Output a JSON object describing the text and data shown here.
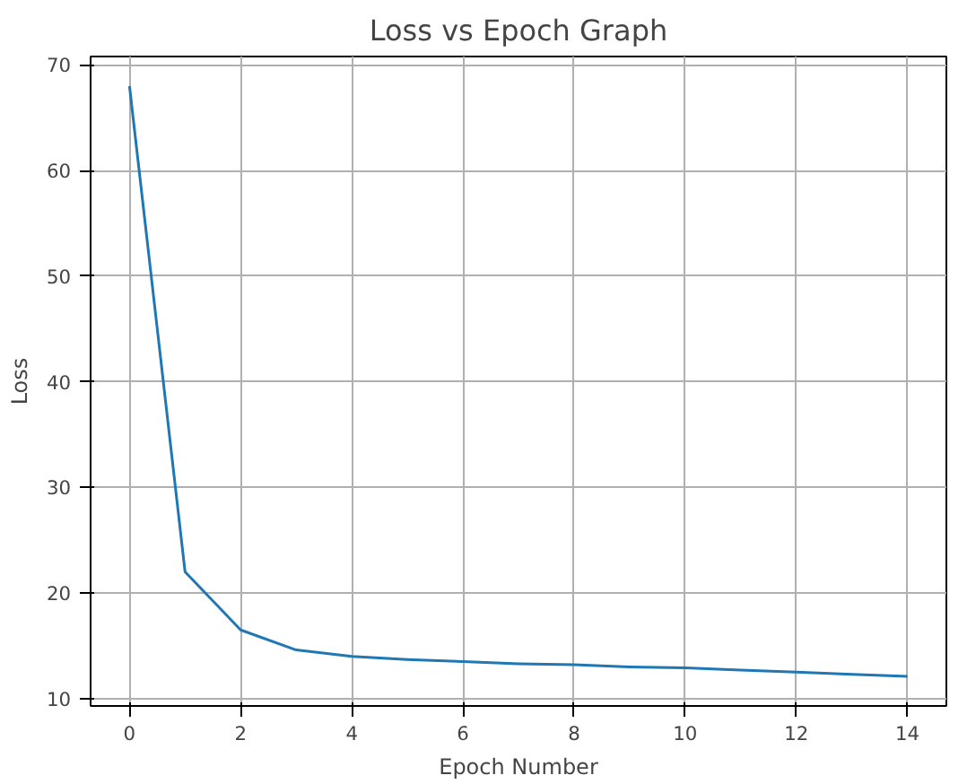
{
  "chart_data": {
    "type": "line",
    "title": "Loss vs Epoch Graph",
    "xlabel": "Epoch Number",
    "ylabel": "Loss",
    "x": [
      0,
      1,
      2,
      3,
      4,
      5,
      6,
      7,
      8,
      9,
      10,
      11,
      12,
      13,
      14
    ],
    "series": [
      {
        "color": "#1f77b4",
        "values": [
          68,
          22,
          16.5,
          14.6,
          14,
          13.7,
          13.5,
          13.3,
          13.2,
          13.0,
          12.9,
          12.7,
          12.5,
          12.3,
          12.1
        ]
      }
    ],
    "xlim": [
      -0.7,
      14.7
    ],
    "ylim": [
      9.3,
      70.8
    ],
    "xticks": [
      0,
      2,
      4,
      6,
      8,
      10,
      12,
      14
    ],
    "yticks": [
      10,
      20,
      30,
      40,
      50,
      60,
      70
    ],
    "grid": true
  }
}
